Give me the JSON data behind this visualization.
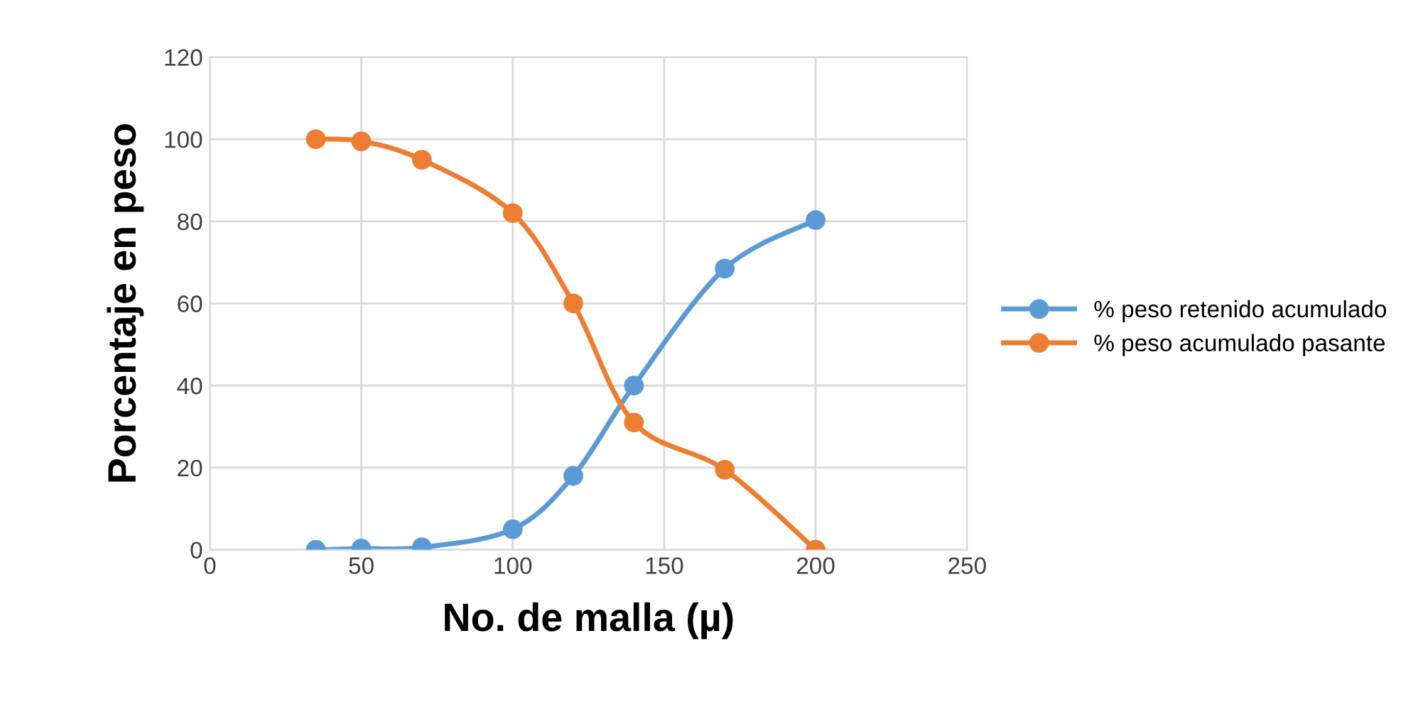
{
  "chart_data": {
    "type": "line",
    "xlabel": "No. de malla (µ)",
    "ylabel": "Porcentaje en peso",
    "xlim": [
      0,
      250
    ],
    "xticks": [
      0,
      50,
      100,
      150,
      200,
      250
    ],
    "ylim": [
      0,
      120
    ],
    "yticks": [
      0,
      20,
      40,
      60,
      80,
      100,
      120
    ],
    "grid": true,
    "legend": "right",
    "marker": "circle",
    "line_style": "solid",
    "x": [
      35,
      50,
      70,
      100,
      120,
      140,
      170,
      200
    ],
    "series": [
      {
        "name": "% peso retenido acumulado",
        "color": "#5b9bd5",
        "values": [
          0,
          0.3,
          0.6,
          5,
          18,
          40,
          68.5,
          80.3
        ]
      },
      {
        "name": "% peso acumulado pasante",
        "color": "#ed7d31",
        "values": [
          100,
          99.5,
          95,
          82,
          60,
          31,
          19.5,
          0
        ]
      }
    ]
  }
}
